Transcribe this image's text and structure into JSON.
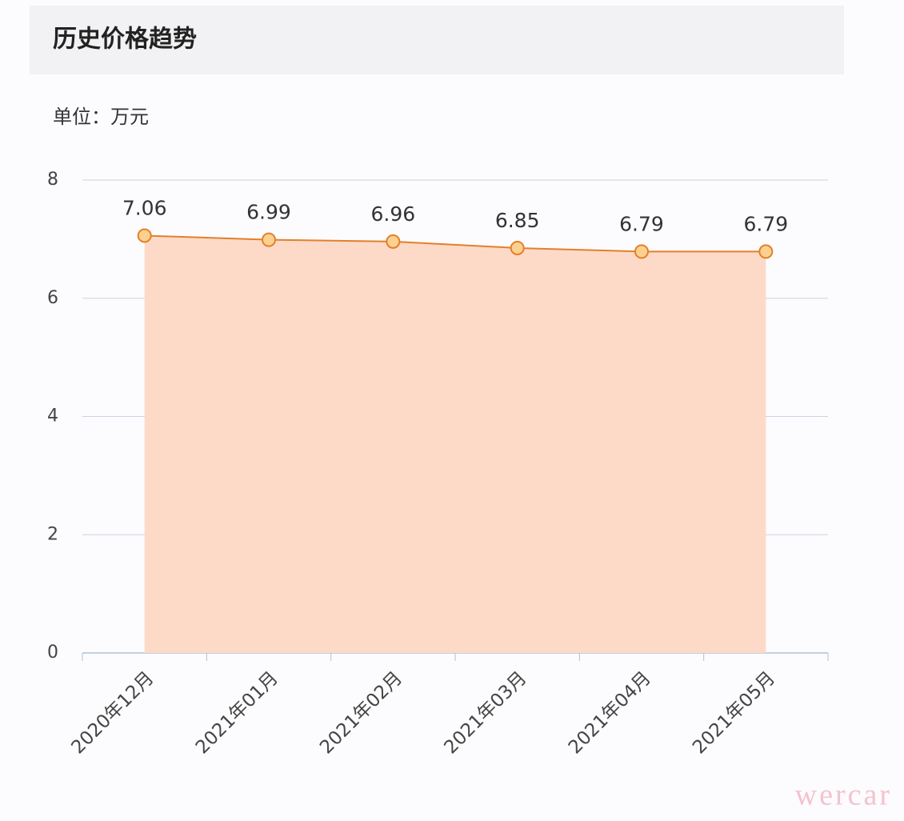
{
  "chart_data": {
    "type": "line",
    "title": "历史价格趋势",
    "unit_label": "单位：万元",
    "categories": [
      "2020年12月",
      "2021年01月",
      "2021年02月",
      "2021年03月",
      "2021年04月",
      "2021年05月"
    ],
    "values": [
      7.06,
      6.99,
      6.96,
      6.85,
      6.79,
      6.79
    ],
    "color": "#e2802a",
    "area": true,
    "area_color": "#fddac8",
    "marker_color": "#fcd190",
    "ylim": [
      0,
      8
    ],
    "yticks": [
      0,
      2,
      4,
      6,
      8
    ],
    "grid": true,
    "data_labels": true
  },
  "watermark": "wercar"
}
